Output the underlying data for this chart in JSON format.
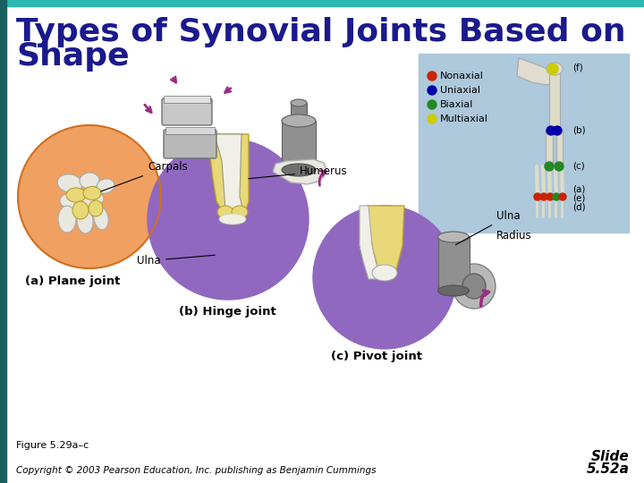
{
  "title_line1": "Types of Synovial Joints Based on",
  "title_line2": "Shape",
  "title_color": "#1a1a8c",
  "title_fontsize": 26,
  "bg_color": "#ffffff",
  "top_bar_color": "#2db8b0",
  "left_bar_color": "#1a6060",
  "figure_label": "Figure 5.29a–c",
  "copyright_text": "Copyright © 2003 Pearson Education, Inc. publishing as Benjamin Cummings",
  "slide_text_line1": "Slide",
  "slide_text_line2": "5.52a",
  "figure_label_fontsize": 8,
  "copyright_fontsize": 7.5,
  "slide_fontsize": 11,
  "orange_circle_color": "#f0a060",
  "purple_circle_color": "#9068c0",
  "blue_panel_color": "#aec8dc",
  "bone_color": "#e8d878",
  "bone_edge_color": "#b8a030",
  "gray_color": "#909090",
  "gray_light": "#c0c0c0",
  "magenta_color": "#9b2d82",
  "white_bone": "#e8e8e0",
  "legend_items": [
    {
      "label": "Nonaxial",
      "color": "#cc2200"
    },
    {
      "label": "Uniaxial",
      "color": "#0000aa"
    },
    {
      "label": "Biaxial",
      "color": "#228822"
    },
    {
      "label": "Multiaxial",
      "color": "#cccc00"
    }
  ]
}
